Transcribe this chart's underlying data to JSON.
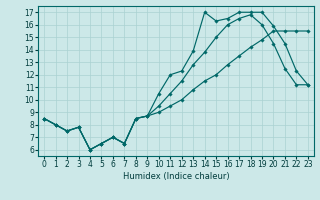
{
  "bg_color": "#cce8e8",
  "line_color": "#006868",
  "grid_color": "#aad2d2",
  "text_color": "#003c3c",
  "xlabel": "Humidex (Indice chaleur)",
  "xlim": [
    -0.5,
    23.5
  ],
  "ylim": [
    5.5,
    17.5
  ],
  "xticks": [
    0,
    1,
    2,
    3,
    4,
    5,
    6,
    7,
    8,
    9,
    10,
    11,
    12,
    13,
    14,
    15,
    16,
    17,
    18,
    19,
    20,
    21,
    22,
    23
  ],
  "yticks": [
    6,
    7,
    8,
    9,
    10,
    11,
    12,
    13,
    14,
    15,
    16,
    17
  ],
  "series": [
    [
      8.5,
      8.0,
      7.5,
      7.8,
      6.0,
      6.5,
      7.0,
      6.5,
      8.5,
      8.7,
      9.0,
      9.5,
      10.0,
      10.8,
      11.5,
      12.0,
      12.8,
      13.5,
      14.2,
      14.8,
      15.5,
      15.5,
      15.5,
      15.5
    ],
    [
      8.5,
      8.0,
      7.5,
      7.8,
      6.0,
      6.5,
      7.0,
      6.5,
      8.5,
      8.7,
      10.5,
      12.0,
      12.3,
      13.9,
      17.0,
      16.3,
      16.5,
      17.0,
      17.0,
      17.0,
      15.9,
      14.5,
      12.3,
      11.2
    ],
    [
      8.5,
      8.0,
      7.5,
      7.8,
      6.0,
      6.5,
      7.0,
      6.5,
      8.5,
      8.7,
      9.5,
      10.5,
      11.5,
      12.8,
      13.8,
      15.0,
      16.0,
      16.5,
      16.8,
      16.0,
      14.5,
      12.5,
      11.2,
      11.2
    ]
  ]
}
